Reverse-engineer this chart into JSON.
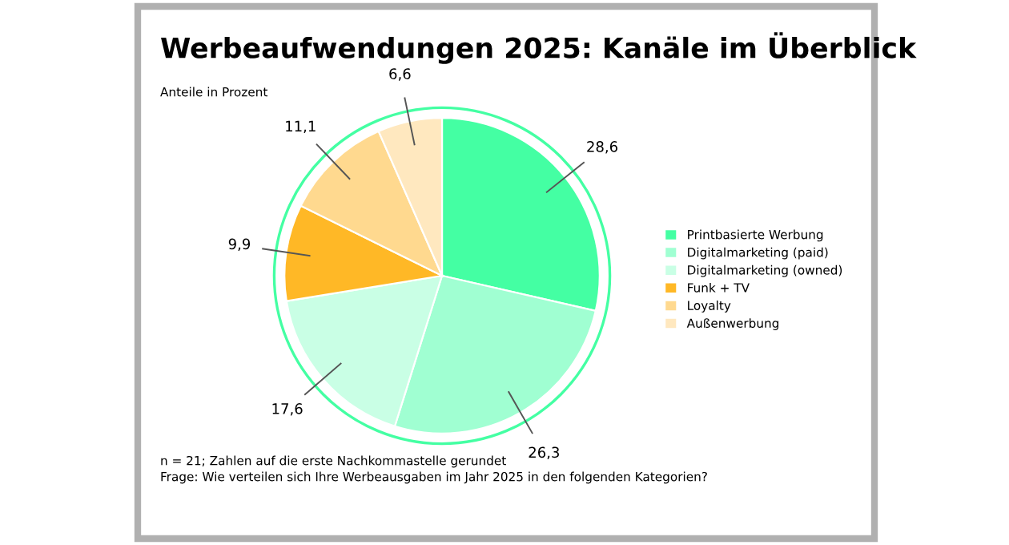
{
  "chart_data": {
    "type": "pie",
    "title": "Werbeaufwendungen 2025: Kanäle im Überblick",
    "subtitle": "Anteile in Prozent",
    "categories": [
      "Printbasierte Werbung",
      "Digitalmarketing (paid)",
      "Digitalmarketing (owned)",
      "Funk + TV",
      "Loyalty",
      "Außenwerbung"
    ],
    "values": [
      28.6,
      26.3,
      17.6,
      9.9,
      11.1,
      6.6
    ],
    "colors": [
      "#44ffa3",
      "#a0ffd2",
      "#c9ffe5",
      "#ffb826",
      "#ffd98f",
      "#ffe8bf"
    ],
    "value_labels": [
      "28,6",
      "26,3",
      "17,6",
      "9,9",
      "11,1",
      "6,6"
    ],
    "legend": "right",
    "annotations": [
      "n = 21; Zahlen auf die erste Nachkommastelle gerundet",
      "Frage: Wie verteilen sich Ihre Werbeausgaben im Jahr 2025 in den folgenden Kategorien?"
    ]
  }
}
